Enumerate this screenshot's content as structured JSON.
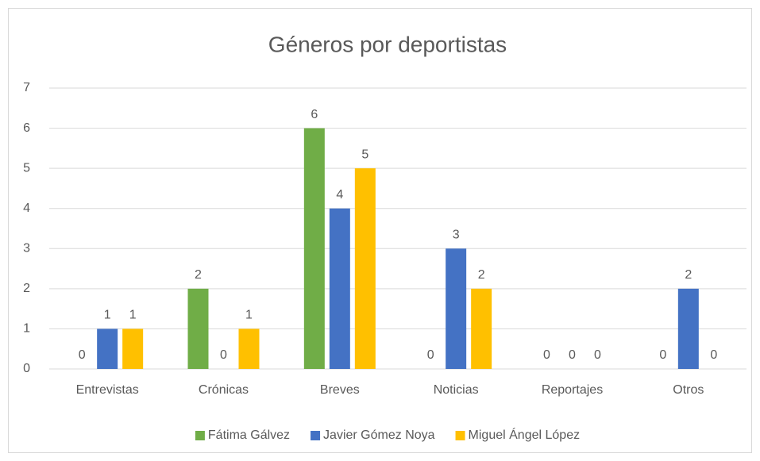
{
  "chart_data": {
    "type": "bar",
    "title": "Géneros por deportistas",
    "categories": [
      "Entrevistas",
      "Crónicas",
      "Breves",
      "Noticias",
      "Reportajes",
      "Otros"
    ],
    "series": [
      {
        "name": "Fátima Gálvez",
        "color": "#70ad47",
        "values": [
          0,
          2,
          6,
          0,
          0,
          0
        ]
      },
      {
        "name": "Javier Gómez Noya",
        "color": "#4472c4",
        "values": [
          1,
          0,
          4,
          3,
          0,
          2
        ]
      },
      {
        "name": "Miguel Ángel López",
        "color": "#ffc000",
        "values": [
          1,
          1,
          5,
          2,
          0,
          0
        ]
      }
    ],
    "ylim": [
      0,
      7
    ],
    "yticks": [
      0,
      1,
      2,
      3,
      4,
      5,
      6,
      7
    ],
    "grid": true,
    "legend": "bottom"
  }
}
